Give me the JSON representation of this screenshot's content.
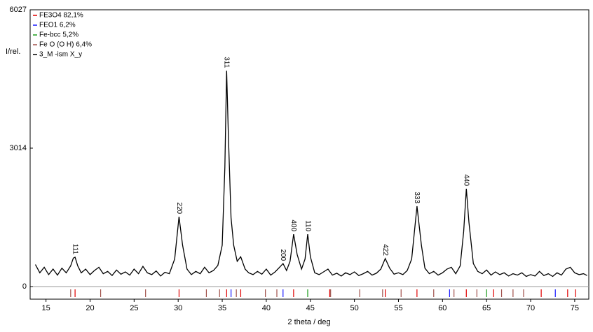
{
  "chart_data": {
    "type": "line",
    "xlabel": "2 theta / deg",
    "ylabel": "I/rel.",
    "xlim": [
      13.2,
      76.6
    ],
    "ylim": [
      0,
      6027
    ],
    "xticks": [
      15,
      20,
      25,
      30,
      35,
      40,
      45,
      50,
      55,
      60,
      65,
      70,
      75
    ],
    "yticks": [
      0,
      3014,
      6027
    ],
    "grid": false,
    "legend": "upper left",
    "x": [
      13.8,
      14.3,
      14.8,
      15.3,
      15.8,
      16.3,
      16.8,
      17.3,
      17.8,
      18.1,
      18.3,
      18.6,
      19.0,
      19.5,
      20.0,
      20.5,
      21.0,
      21.5,
      22.0,
      22.5,
      23.0,
      23.5,
      24.0,
      24.5,
      25.0,
      25.5,
      26.0,
      26.5,
      27.0,
      27.5,
      28.0,
      28.5,
      29.0,
      29.6,
      30.1,
      30.5,
      31.0,
      31.5,
      32.0,
      32.5,
      33.0,
      33.5,
      34.0,
      34.5,
      35.0,
      35.3,
      35.5,
      35.7,
      36.0,
      36.3,
      36.7,
      37.1,
      37.6,
      38.0,
      38.5,
      39.0,
      39.5,
      40.0,
      40.5,
      41.0,
      41.5,
      41.9,
      42.3,
      42.7,
      43.1,
      43.5,
      44.0,
      44.4,
      44.7,
      45.0,
      45.5,
      46.0,
      46.5,
      47.0,
      47.5,
      48.0,
      48.5,
      49.0,
      49.5,
      50.0,
      50.5,
      51.0,
      51.5,
      52.0,
      52.5,
      53.0,
      53.5,
      54.0,
      54.5,
      55.0,
      55.5,
      56.0,
      56.5,
      57.1,
      57.6,
      58.0,
      58.5,
      59.0,
      59.5,
      60.0,
      60.5,
      61.0,
      61.5,
      62.0,
      62.4,
      62.7,
      63.0,
      63.5,
      64.0,
      64.5,
      65.0,
      65.5,
      66.0,
      66.5,
      67.0,
      67.5,
      68.0,
      68.5,
      69.0,
      69.5,
      70.0,
      70.5,
      71.0,
      71.5,
      72.0,
      72.5,
      73.0,
      73.5,
      74.0,
      74.5,
      75.0,
      75.5,
      76.0,
      76.4
    ],
    "phases": [
      {
        "name": "FE3O4  82,1%",
        "color": "#e00000",
        "reflections": [
          18.3,
          30.1,
          35.5,
          37.1,
          43.1,
          47.2,
          53.5,
          57.1,
          62.7,
          65.8,
          71.2,
          74.2,
          75.1
        ]
      },
      {
        "name": "FEO1  6,2%",
        "color": "#1a1aff",
        "reflections": [
          36.0,
          41.9,
          60.8,
          72.8
        ]
      },
      {
        "name": "Fe-bcc  5,2%",
        "color": "#1a9a1a",
        "reflections": [
          44.7,
          65.0
        ]
      },
      {
        "name": "Fe O (O H) 6,4%",
        "color": "#a0504a",
        "reflections": [
          17.8,
          21.2,
          26.3,
          33.2,
          34.7,
          36.6,
          39.9,
          41.2,
          47.3,
          50.6,
          53.2,
          55.3,
          59.0,
          61.3,
          63.9,
          66.7,
          68.0,
          69.2
        ]
      }
    ],
    "series": [
      {
        "name": "3_M -ism X_y",
        "color": "#000000",
        "values": [
          480,
          300,
          420,
          260,
          380,
          250,
          400,
          300,
          450,
          620,
          640,
          450,
          300,
          380,
          260,
          350,
          420,
          280,
          330,
          240,
          360,
          270,
          320,
          250,
          380,
          280,
          440,
          300,
          260,
          340,
          230,
          310,
          280,
          600,
          1520,
          900,
          380,
          260,
          330,
          280,
          420,
          300,
          350,
          460,
          900,
          2600,
          4700,
          3300,
          1500,
          900,
          550,
          650,
          380,
          300,
          260,
          330,
          270,
          380,
          250,
          320,
          420,
          500,
          350,
          550,
          1140,
          700,
          380,
          600,
          1140,
          650,
          300,
          260,
          320,
          380,
          250,
          290,
          230,
          300,
          260,
          320,
          240,
          280,
          330,
          250,
          290,
          380,
          610,
          400,
          270,
          300,
          260,
          350,
          600,
          1750,
          900,
          400,
          280,
          330,
          250,
          300,
          380,
          420,
          280,
          450,
          1200,
          2130,
          1400,
          500,
          330,
          280,
          360,
          250,
          320,
          260,
          300,
          230,
          280,
          250,
          300,
          220,
          260,
          230,
          330,
          240,
          280,
          220,
          300,
          250,
          380,
          420,
          300,
          260,
          280,
          240
        ]
      }
    ],
    "annotations": [
      {
        "text": "111",
        "x": 18.3,
        "color": "#e00000"
      },
      {
        "text": "220",
        "x": 30.1,
        "color": "#e00000"
      },
      {
        "text": "311",
        "x": 35.5,
        "color": "#e00000"
      },
      {
        "text": "200",
        "x": 41.9,
        "color": "#1a1aff"
      },
      {
        "text": "400",
        "x": 43.1,
        "color": "#e00000"
      },
      {
        "text": "110",
        "x": 44.7,
        "color": "#1a9a1a"
      },
      {
        "text": "422",
        "x": 53.5,
        "color": "#e00000"
      },
      {
        "text": "333",
        "x": 57.1,
        "color": "#e00000"
      },
      {
        "text": "440",
        "x": 62.7,
        "color": "#e00000"
      }
    ]
  }
}
